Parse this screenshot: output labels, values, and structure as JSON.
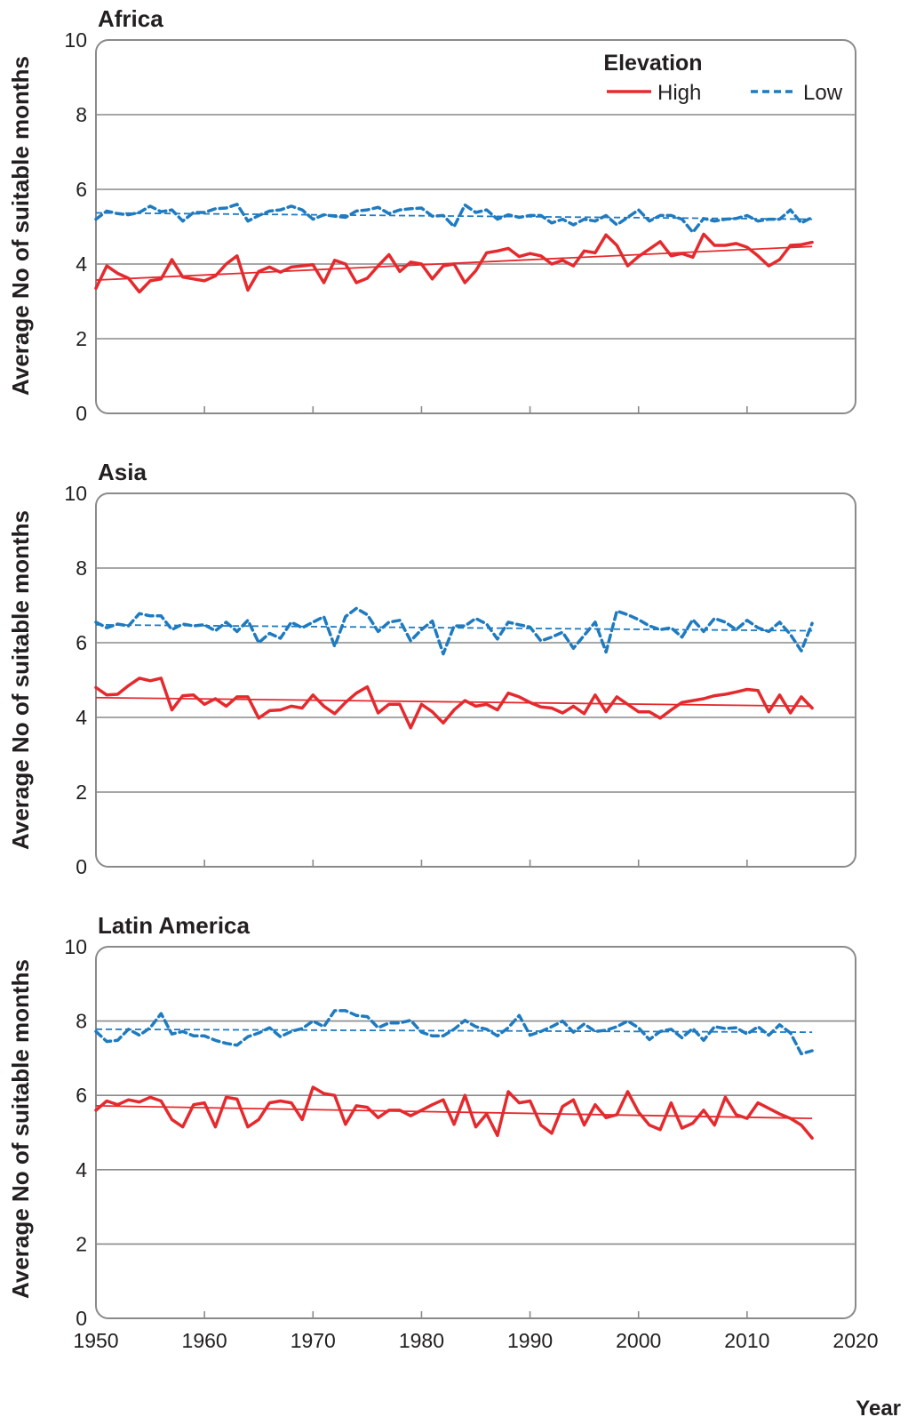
{
  "chart_data": [
    {
      "type": "line",
      "title": "Africa",
      "ylabel": "Average No of suitable months",
      "xlim": [
        1950,
        2020
      ],
      "ylim": [
        0,
        10
      ],
      "yticks": [
        0,
        2,
        4,
        6,
        8,
        10
      ],
      "grid": true,
      "legend": {
        "title": "Elevation",
        "placement": "top-right"
      },
      "x_start": 1950,
      "series": [
        {
          "name": "High",
          "color": "#e52a2e",
          "style": "solid",
          "values": [
            3.35,
            3.95,
            3.75,
            3.62,
            3.25,
            3.55,
            3.6,
            4.12,
            3.65,
            3.6,
            3.55,
            3.68,
            4.0,
            4.22,
            3.3,
            3.8,
            3.92,
            3.78,
            3.92,
            3.95,
            3.98,
            3.5,
            4.1,
            4.0,
            3.5,
            3.62,
            3.95,
            4.25,
            3.8,
            4.05,
            4.0,
            3.6,
            3.95,
            4.0,
            3.5,
            3.82,
            4.3,
            4.35,
            4.42,
            4.2,
            4.28,
            4.22,
            4.0,
            4.1,
            3.95,
            4.35,
            4.3,
            4.78,
            4.5,
            3.95,
            4.2,
            4.4,
            4.6,
            4.22,
            4.28,
            4.18,
            4.8,
            4.5,
            4.5,
            4.55,
            4.45,
            4.22,
            3.95,
            4.12,
            4.5,
            4.52,
            4.58
          ],
          "trend": [
            3.57,
            4.47
          ]
        },
        {
          "name": "Low",
          "color": "#1f7bc0",
          "style": "dashed",
          "values": [
            5.2,
            5.42,
            5.35,
            5.32,
            5.38,
            5.55,
            5.4,
            5.45,
            5.15,
            5.38,
            5.38,
            5.48,
            5.5,
            5.6,
            5.15,
            5.3,
            5.42,
            5.45,
            5.55,
            5.45,
            5.2,
            5.32,
            5.28,
            5.25,
            5.42,
            5.45,
            5.52,
            5.35,
            5.45,
            5.48,
            5.5,
            5.28,
            5.3,
            5.0,
            5.58,
            5.38,
            5.45,
            5.2,
            5.32,
            5.25,
            5.3,
            5.3,
            5.1,
            5.2,
            5.05,
            5.2,
            5.15,
            5.3,
            5.05,
            5.25,
            5.45,
            5.15,
            5.3,
            5.3,
            5.2,
            4.85,
            5.22,
            5.15,
            5.2,
            5.22,
            5.3,
            5.15,
            5.2,
            5.2,
            5.45,
            5.1,
            5.25
          ],
          "trend": [
            5.37,
            5.2
          ]
        }
      ]
    },
    {
      "type": "line",
      "title": "Asia",
      "ylabel": "Average No of suitable months",
      "xlim": [
        1950,
        2020
      ],
      "ylim": [
        0,
        10
      ],
      "yticks": [
        0,
        2,
        4,
        6,
        8,
        10
      ],
      "grid": true,
      "x_start": 1950,
      "series": [
        {
          "name": "High",
          "color": "#e52a2e",
          "style": "solid",
          "values": [
            4.8,
            4.6,
            4.62,
            4.85,
            5.05,
            4.98,
            5.05,
            4.2,
            4.58,
            4.6,
            4.35,
            4.5,
            4.3,
            4.55,
            4.55,
            3.98,
            4.18,
            4.2,
            4.3,
            4.25,
            4.6,
            4.3,
            4.1,
            4.4,
            4.65,
            4.82,
            4.12,
            4.35,
            4.35,
            3.72,
            4.35,
            4.15,
            3.85,
            4.2,
            4.45,
            4.3,
            4.35,
            4.2,
            4.65,
            4.55,
            4.4,
            4.28,
            4.25,
            4.12,
            4.3,
            4.1,
            4.6,
            4.15,
            4.55,
            4.35,
            4.15,
            4.15,
            3.98,
            4.2,
            4.4,
            4.45,
            4.5,
            4.58,
            4.62,
            4.68,
            4.75,
            4.72,
            4.15,
            4.6,
            4.12,
            4.55,
            4.25
          ],
          "trend": [
            4.53,
            4.3
          ]
        },
        {
          "name": "Low",
          "color": "#1f7bc0",
          "style": "dashed",
          "values": [
            6.55,
            6.4,
            6.5,
            6.45,
            6.78,
            6.72,
            6.72,
            6.35,
            6.5,
            6.45,
            6.48,
            6.32,
            6.55,
            6.3,
            6.6,
            6.0,
            6.25,
            6.12,
            6.55,
            6.4,
            6.55,
            6.7,
            5.9,
            6.7,
            6.92,
            6.75,
            6.3,
            6.55,
            6.6,
            6.05,
            6.35,
            6.58,
            5.7,
            6.45,
            6.45,
            6.65,
            6.5,
            6.1,
            6.55,
            6.48,
            6.42,
            6.05,
            6.15,
            6.28,
            5.85,
            6.2,
            6.55,
            5.75,
            6.85,
            6.75,
            6.62,
            6.45,
            6.35,
            6.4,
            6.15,
            6.62,
            6.3,
            6.65,
            6.55,
            6.35,
            6.6,
            6.4,
            6.3,
            6.55,
            6.22,
            5.78,
            6.52
          ],
          "trend": [
            6.48,
            6.32
          ]
        }
      ]
    },
    {
      "type": "line",
      "title": "Latin America",
      "ylabel": "Average No of suitable months",
      "xlabel": "Year",
      "xlim": [
        1950,
        2020
      ],
      "ylim": [
        0,
        10
      ],
      "yticks": [
        0,
        2,
        4,
        6,
        8,
        10
      ],
      "xticks": [
        1950,
        1960,
        1970,
        1980,
        1990,
        2000,
        2010,
        2020
      ],
      "grid": true,
      "x_start": 1950,
      "series": [
        {
          "name": "High",
          "color": "#e52a2e",
          "style": "solid",
          "values": [
            5.6,
            5.85,
            5.75,
            5.88,
            5.82,
            5.95,
            5.85,
            5.35,
            5.15,
            5.75,
            5.8,
            5.15,
            5.95,
            5.9,
            5.15,
            5.35,
            5.8,
            5.85,
            5.8,
            5.35,
            6.22,
            6.05,
            6.0,
            5.22,
            5.72,
            5.68,
            5.4,
            5.6,
            5.6,
            5.45,
            5.6,
            5.75,
            5.88,
            5.22,
            6.0,
            5.15,
            5.5,
            4.92,
            6.1,
            5.8,
            5.85,
            5.2,
            4.98,
            5.7,
            5.88,
            5.2,
            5.75,
            5.4,
            5.48,
            6.1,
            5.55,
            5.2,
            5.08,
            5.8,
            5.12,
            5.25,
            5.6,
            5.2,
            5.95,
            5.48,
            5.38,
            5.8,
            5.65,
            5.5,
            5.38,
            5.2,
            4.85
          ],
          "trend": [
            5.72,
            5.38
          ]
        },
        {
          "name": "Low",
          "color": "#1f7bc0",
          "style": "dashed",
          "values": [
            7.72,
            7.45,
            7.48,
            7.78,
            7.62,
            7.82,
            8.2,
            7.65,
            7.72,
            7.6,
            7.6,
            7.48,
            7.4,
            7.35,
            7.58,
            7.68,
            7.82,
            7.58,
            7.72,
            7.8,
            8.0,
            7.85,
            8.28,
            8.28,
            8.15,
            8.12,
            7.82,
            7.95,
            7.95,
            8.02,
            7.7,
            7.6,
            7.6,
            7.78,
            8.02,
            7.85,
            7.78,
            7.6,
            7.82,
            8.15,
            7.62,
            7.72,
            7.85,
            8.0,
            7.7,
            7.92,
            7.72,
            7.75,
            7.85,
            8.0,
            7.82,
            7.5,
            7.72,
            7.78,
            7.55,
            7.8,
            7.48,
            7.85,
            7.8,
            7.82,
            7.65,
            7.85,
            7.62,
            7.9,
            7.68,
            7.12,
            7.2
          ],
          "trend": [
            7.78,
            7.7
          ]
        }
      ]
    }
  ],
  "legend": {
    "title": "Elevation",
    "high_label": "High",
    "low_label": "Low"
  }
}
